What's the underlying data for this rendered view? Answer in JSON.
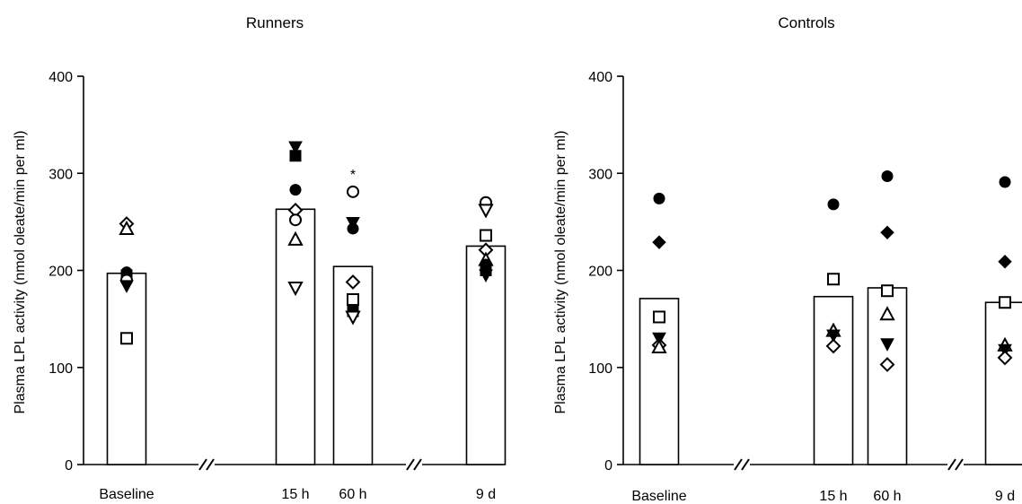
{
  "chart_data": [
    {
      "type": "bar",
      "title": "Runners",
      "ylabel": "Plasma  LPL  activity (nmol oleate/min per ml)",
      "ylim": [
        0,
        400
      ],
      "yticks": [
        0,
        100,
        200,
        300,
        400
      ],
      "axis_breaks": [
        "Baseline-15 h",
        "60 h-9 d"
      ],
      "categories": [
        "Baseline",
        "15 h",
        "60 h",
        "9 d"
      ],
      "values": [
        197,
        263,
        204,
        225
      ],
      "annotations": [
        {
          "category": "60 h",
          "text": "*"
        }
      ],
      "points": [
        {
          "category": "Baseline",
          "marker": "diamond-open",
          "y": 248
        },
        {
          "category": "Baseline",
          "marker": "triangle-open",
          "y": 243
        },
        {
          "category": "Baseline",
          "marker": "circle-filled",
          "y": 198
        },
        {
          "category": "Baseline",
          "marker": "square-filled",
          "y": 195
        },
        {
          "category": "Baseline",
          "marker": "circle-open",
          "y": 190
        },
        {
          "category": "Baseline",
          "marker": "triangle-down-filled",
          "y": 184
        },
        {
          "category": "Baseline",
          "marker": "square-open",
          "y": 130
        },
        {
          "category": "15 h",
          "marker": "triangle-down-filled",
          "y": 327
        },
        {
          "category": "15 h",
          "marker": "square-filled",
          "y": 318
        },
        {
          "category": "15 h",
          "marker": "circle-filled",
          "y": 283
        },
        {
          "category": "15 h",
          "marker": "diamond-open",
          "y": 262
        },
        {
          "category": "15 h",
          "marker": "circle-open",
          "y": 252
        },
        {
          "category": "15 h",
          "marker": "triangle-open",
          "y": 232
        },
        {
          "category": "15 h",
          "marker": "triangle-down-open",
          "y": 182
        },
        {
          "category": "60 h",
          "marker": "circle-open",
          "y": 281
        },
        {
          "category": "60 h",
          "marker": "triangle-down-filled",
          "y": 249
        },
        {
          "category": "60 h",
          "marker": "circle-filled",
          "y": 243
        },
        {
          "category": "60 h",
          "marker": "diamond-open",
          "y": 188
        },
        {
          "category": "60 h",
          "marker": "square-open",
          "y": 170
        },
        {
          "category": "60 h",
          "marker": "square-filled",
          "y": 158
        },
        {
          "category": "60 h",
          "marker": "triangle-down-open",
          "y": 152
        },
        {
          "category": "9 d",
          "marker": "circle-open",
          "y": 270
        },
        {
          "category": "9 d",
          "marker": "triangle-down-open",
          "y": 262
        },
        {
          "category": "9 d",
          "marker": "square-open",
          "y": 236
        },
        {
          "category": "9 d",
          "marker": "diamond-open",
          "y": 221
        },
        {
          "category": "9 d",
          "marker": "triangle-open",
          "y": 211
        },
        {
          "category": "9 d",
          "marker": "circle-filled",
          "y": 206
        },
        {
          "category": "9 d",
          "marker": "square-filled",
          "y": 200
        },
        {
          "category": "9 d",
          "marker": "triangle-down-filled",
          "y": 195
        }
      ]
    },
    {
      "type": "bar",
      "title": "Controls",
      "ylabel": "Plasma  LPL  activity (nmol oleate/min per ml)",
      "ylim": [
        0,
        400
      ],
      "yticks": [
        0,
        100,
        200,
        300,
        400
      ],
      "axis_breaks": [
        "Baseline-15 h",
        "60 h-9 d"
      ],
      "categories": [
        "Baseline",
        "15 h",
        "60 h",
        "9 d"
      ],
      "values": [
        171,
        173,
        182,
        167
      ],
      "annotations": [],
      "points": [
        {
          "category": "Baseline",
          "marker": "circle-filled",
          "y": 274
        },
        {
          "category": "Baseline",
          "marker": "diamond-filled",
          "y": 229
        },
        {
          "category": "Baseline",
          "marker": "square-open",
          "y": 152
        },
        {
          "category": "Baseline",
          "marker": "triangle-down-filled",
          "y": 130
        },
        {
          "category": "Baseline",
          "marker": "diamond-open",
          "y": 123
        },
        {
          "category": "Baseline",
          "marker": "triangle-open",
          "y": 121
        },
        {
          "category": "15 h",
          "marker": "circle-filled",
          "y": 268
        },
        {
          "category": "15 h",
          "marker": "square-open",
          "y": 191
        },
        {
          "category": "15 h",
          "marker": "triangle-open",
          "y": 138
        },
        {
          "category": "15 h",
          "marker": "triangle-down-filled",
          "y": 133
        },
        {
          "category": "15 h",
          "marker": "diamond-open",
          "y": 122
        },
        {
          "category": "60 h",
          "marker": "circle-filled",
          "y": 297
        },
        {
          "category": "60 h",
          "marker": "diamond-filled",
          "y": 239
        },
        {
          "category": "60 h",
          "marker": "square-open",
          "y": 179
        },
        {
          "category": "60 h",
          "marker": "triangle-open",
          "y": 155
        },
        {
          "category": "60 h",
          "marker": "triangle-down-filled",
          "y": 124
        },
        {
          "category": "60 h",
          "marker": "diamond-open",
          "y": 103
        },
        {
          "category": "9 d",
          "marker": "circle-filled",
          "y": 291
        },
        {
          "category": "9 d",
          "marker": "diamond-filled",
          "y": 209
        },
        {
          "category": "9 d",
          "marker": "square-open",
          "y": 167
        },
        {
          "category": "9 d",
          "marker": "triangle-open",
          "y": 123
        },
        {
          "category": "9 d",
          "marker": "triangle-down-filled",
          "y": 118
        },
        {
          "category": "9 d",
          "marker": "diamond-open",
          "y": 110
        }
      ]
    }
  ]
}
